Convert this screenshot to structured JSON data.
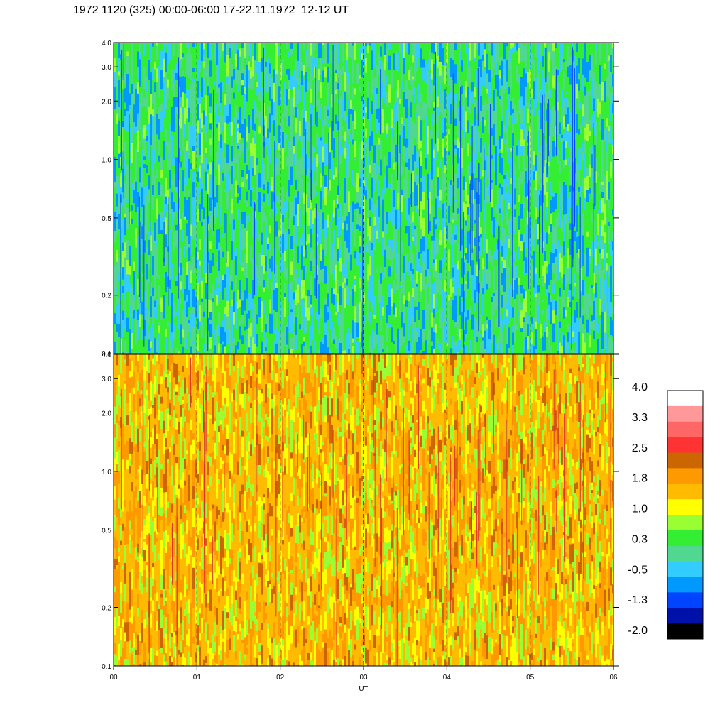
{
  "title": "1972 1120 (325) 00:00-06:00 17-22.11.1972  12-12 UT",
  "chart_data": [
    {
      "type": "heatmap",
      "panel": "upper",
      "title": "",
      "xlabel": "",
      "ylabel": "",
      "y_scale": "log",
      "ylim": [
        0.1,
        4.0
      ],
      "y_ticks": [
        "0.1",
        "0.2",
        "0.5",
        "1.0",
        "2.0",
        "3.0",
        "4.0"
      ],
      "xlim": [
        0,
        6
      ],
      "dashed_hour_lines": [
        1,
        2,
        3,
        4,
        5
      ],
      "dominant_colors": [
        "#33ee33",
        "#50d890",
        "#33ccff",
        "#0099ff",
        "#99ff33"
      ]
    },
    {
      "type": "heatmap",
      "panel": "lower",
      "title": "",
      "xlabel": "UT",
      "ylabel": "",
      "y_scale": "log",
      "ylim": [
        0.1,
        4.0
      ],
      "y_ticks": [
        "0.1",
        "0.2",
        "0.5",
        "1.0",
        "2.0",
        "3.0",
        "4.0"
      ],
      "x_ticks": [
        "00",
        "01",
        "02",
        "03",
        "04",
        "05",
        "06"
      ],
      "xlim": [
        0,
        6
      ],
      "dashed_hour_lines": [
        1,
        2,
        3,
        4,
        5
      ],
      "dominant_colors": [
        "#ffbb00",
        "#ff9900",
        "#ffff00",
        "#99ff33",
        "#cc6600"
      ]
    }
  ],
  "colorbar": {
    "labels": [
      "4.0",
      "3.3",
      "2.5",
      "1.8",
      "1.0",
      "0.3",
      "-0.5",
      "-1.3",
      "-2.0"
    ],
    "colors": [
      "#ffffff",
      "#ff9999",
      "#ff6666",
      "#ff3333",
      "#cc6600",
      "#ff9900",
      "#ffbb00",
      "#ffff00",
      "#99ff33",
      "#33ee33",
      "#50d890",
      "#33ccff",
      "#0099ff",
      "#0044ff",
      "#0011aa",
      "#000000"
    ]
  }
}
